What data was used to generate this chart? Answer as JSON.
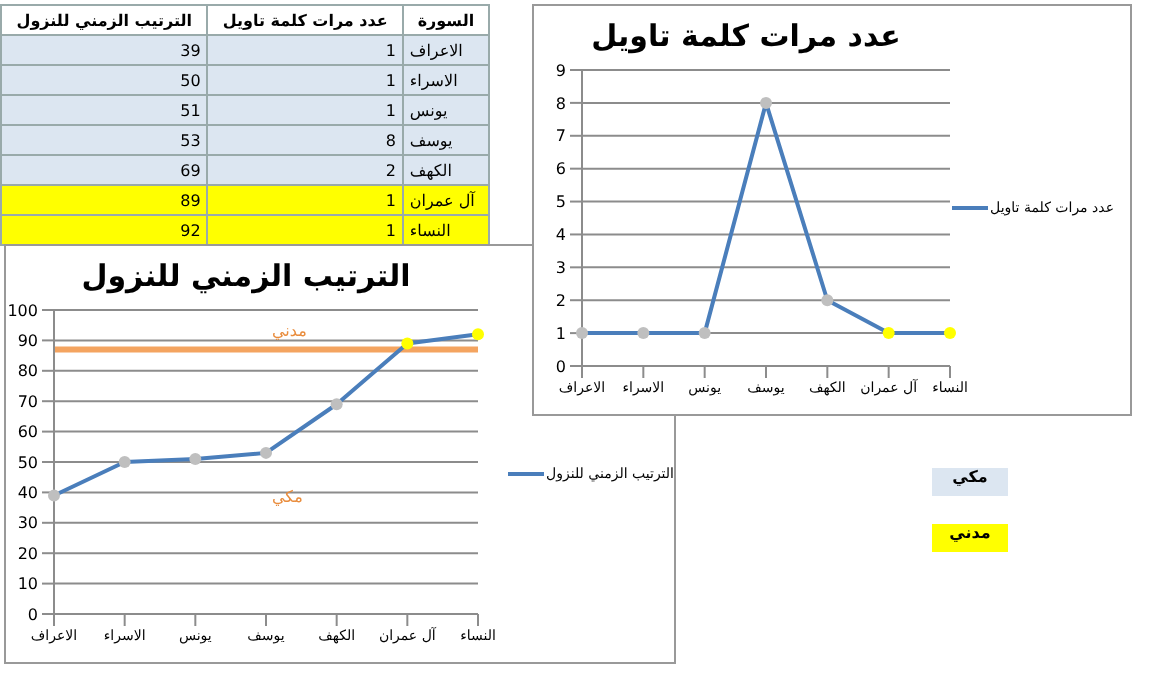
{
  "chart_data": [
    {
      "type": "other",
      "xlabel": "السورة",
      "categories": [
        "الاعراف",
        "الاسراء",
        "يونس",
        "يوسف",
        "الكهف",
        "آل عمران",
        "النساء"
      ],
      "series": [
        {
          "name": "الترتيب الزمني للنزول",
          "values": [
            39,
            50,
            51,
            53,
            69,
            89,
            92
          ],
          "colors": [
            "#dce6f1",
            "#dce6f1",
            "#dce6f1",
            "#dce6f1",
            "#dce6f1",
            "#ffff00",
            "#ffff00"
          ]
        },
        {
          "name": "عدد مرات كلمة تاويل",
          "values": [
            1,
            1,
            1,
            8,
            2,
            1,
            1
          ],
          "colors": [
            "#dce6f1",
            "#dce6f1",
            "#dce6f1",
            "#dce6f1",
            "#dce6f1",
            "#ffff00",
            "#ffff00"
          ]
        }
      ],
      "data_labels": true
    },
    {
      "type": "line",
      "title": "عدد مرات كلمة تاويل",
      "categories": [
        "الاعراف",
        "الاسراء",
        "يونس",
        "يوسف",
        "الكهف",
        "آل عمران",
        "النساء"
      ],
      "series": [
        {
          "name": "عدد مرات كلمة تاويل",
          "color": "#4a7ebb",
          "values": [
            1,
            1,
            1,
            8,
            2,
            1,
            1
          ],
          "colors": [
            "#bfbfbf",
            "#bfbfbf",
            "#bfbfbf",
            "#bfbfbf",
            "#bfbfbf",
            "#ffff00",
            "#ffff00"
          ]
        }
      ],
      "ylim": [
        0,
        9
      ],
      "yticks": [
        0,
        1,
        2,
        3,
        4,
        5,
        6,
        7,
        8,
        9
      ],
      "grid": "y",
      "legend": "right",
      "marker": "circle"
    },
    {
      "type": "line",
      "title": "الترتيب الزمني للنزول",
      "categories": [
        "الاعراف",
        "الاسراء",
        "يونس",
        "يوسف",
        "الكهف",
        "آل عمران",
        "النساء"
      ],
      "series": [
        {
          "name": "الترتيب الزمني للنزول",
          "color": "#4a7ebb",
          "values": [
            39,
            50,
            51,
            53,
            69,
            89,
            92
          ],
          "colors": [
            "#bfbfbf",
            "#bfbfbf",
            "#bfbfbf",
            "#bfbfbf",
            "#bfbfbf",
            "#ffff00",
            "#ffff00"
          ]
        }
      ],
      "ylim": [
        0,
        100
      ],
      "yticks": [
        0,
        10,
        20,
        30,
        40,
        50,
        60,
        70,
        80,
        90,
        100
      ],
      "grid": "y",
      "legend": "right",
      "marker": "circle",
      "ref_lines": [
        {
          "axis": "y",
          "value": 87,
          "color": "#f4a460"
        }
      ],
      "annotations": [
        "مدني",
        "مكي"
      ]
    }
  ]
}
